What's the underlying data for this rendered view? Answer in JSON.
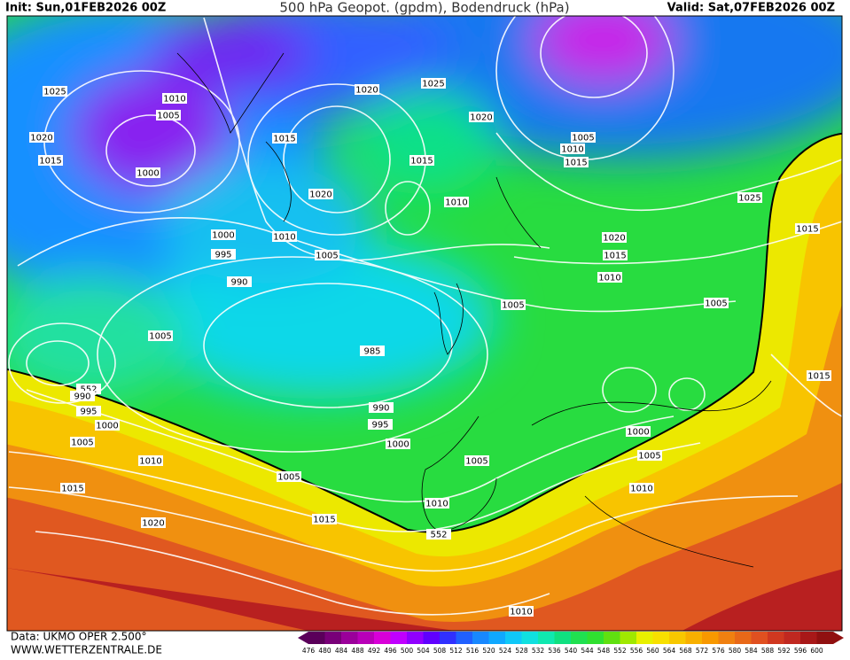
{
  "header": {
    "init": "Init: Sun,01FEB2026 00Z",
    "title": "500 hPa Geopot. (gpdm), Bodendruck (hPa)",
    "valid": "Valid: Sat,07FEB2026 00Z"
  },
  "footer": {
    "source": "Data: UKMO OPER 2.500°",
    "site": "WWW.WETTERZENTRALE.DE"
  },
  "isobar_labels": [
    1025,
    1010,
    1005,
    1020,
    1015,
    1000,
    1020,
    1025,
    1020,
    1015,
    1015,
    1020,
    1010,
    1010,
    1000,
    995,
    1005,
    990,
    1005,
    985,
    1005,
    1005,
    1010,
    1015,
    1025,
    1015,
    1020,
    1015,
    1010,
    1005,
    1015,
    552,
    990,
    995,
    1000,
    990,
    995,
    1000,
    1005,
    1010,
    1005,
    1000,
    1005,
    1005,
    1015,
    1010,
    1010,
    1015,
    1020,
    552,
    1010
  ],
  "legend": {
    "values": [
      476,
      480,
      484,
      488,
      492,
      496,
      500,
      504,
      508,
      512,
      516,
      520,
      524,
      528,
      532,
      536,
      540,
      544,
      548,
      552,
      556,
      560,
      564,
      568,
      572,
      576,
      580,
      584,
      588,
      592,
      596,
      600
    ],
    "colors": [
      "#5a005a",
      "#780078",
      "#9a009a",
      "#b800b8",
      "#d800d8",
      "#c000ff",
      "#9000ff",
      "#6000ff",
      "#3030ff",
      "#2060ff",
      "#1888ff",
      "#10a8ff",
      "#10c8f8",
      "#10e0e0",
      "#10e8b0",
      "#10e080",
      "#20e050",
      "#30e030",
      "#60e010",
      "#a0e800",
      "#e8f000",
      "#f8e000",
      "#f8c800",
      "#f8b000",
      "#f89800",
      "#f08010",
      "#e86818",
      "#e05020",
      "#d03820",
      "#c02820",
      "#a81818",
      "#901010"
    ]
  }
}
